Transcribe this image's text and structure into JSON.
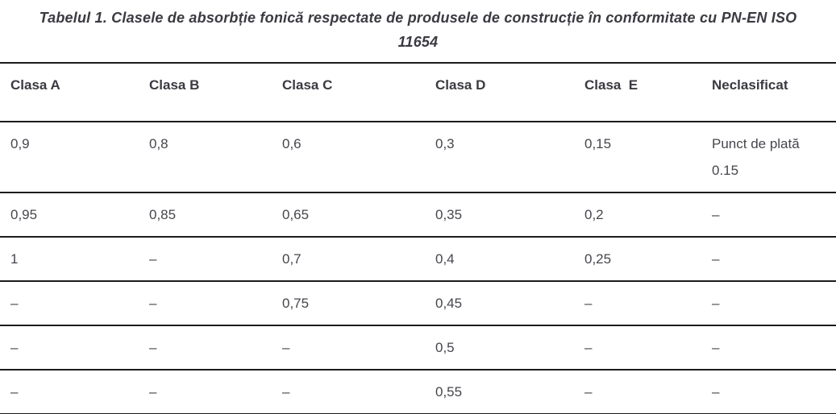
{
  "title": {
    "line1": "Tabelul 1. Clasele de absorbție fonică respectate de produsele de construcție în conformitate cu PN-EN ISO",
    "line2": "11654"
  },
  "table": {
    "columns": [
      "Clasa A",
      "Clasa B",
      "Clasa C",
      "Clasa D",
      "Clasa  E",
      "Neclasificat"
    ],
    "rows": [
      {
        "cells": [
          "0,9",
          "0,8",
          "0,6",
          "0,3",
          "0,15",
          "Punct de plată\n0.15"
        ]
      },
      {
        "cells": [
          "0,95",
          "0,85",
          "0,65",
          "0,35",
          "0,2",
          "–"
        ]
      },
      {
        "cells": [
          "1",
          "–",
          "0,7",
          "0,4",
          "0,25",
          "–"
        ]
      },
      {
        "cells": [
          "–",
          "–",
          "0,75",
          "0,45",
          "–",
          "–"
        ]
      },
      {
        "cells": [
          "–",
          "–",
          "–",
          "0,5",
          "–",
          "–"
        ]
      },
      {
        "cells": [
          "–",
          "–",
          "–",
          "0,55",
          "–",
          "–"
        ]
      }
    ]
  },
  "colors": {
    "text": "#46464d",
    "heading_text": "#3a3a41",
    "rule_line": "#1c1c1c",
    "background": "#ffffff"
  }
}
